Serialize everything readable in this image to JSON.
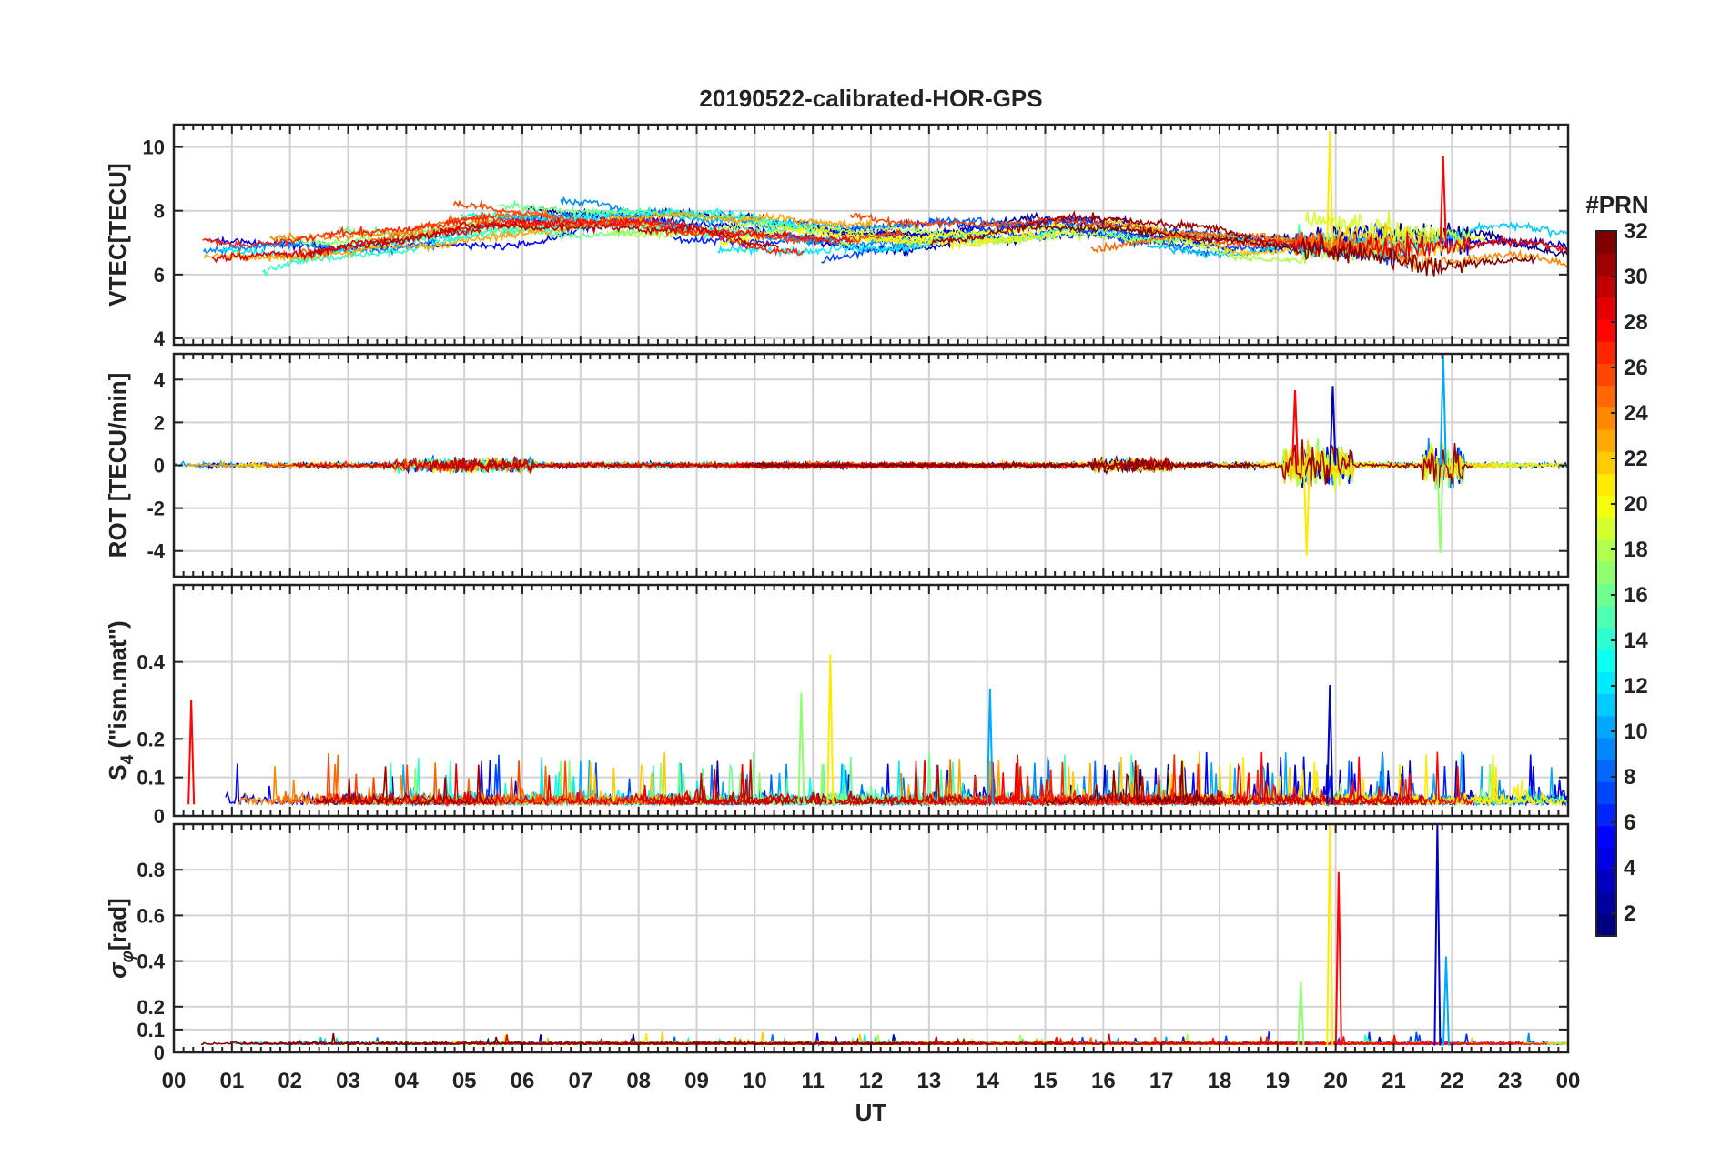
{
  "title": "20190522-calibrated-HOR-GPS",
  "xlabel": "UT",
  "x_ticks": [
    "00",
    "01",
    "02",
    "03",
    "04",
    "05",
    "06",
    "07",
    "08",
    "09",
    "10",
    "11",
    "12",
    "13",
    "14",
    "15",
    "16",
    "17",
    "18",
    "19",
    "20",
    "21",
    "22",
    "23",
    "00"
  ],
  "colorbar": {
    "title": "#PRN",
    "ticks": [
      "2",
      "4",
      "6",
      "8",
      "10",
      "12",
      "14",
      "16",
      "18",
      "20",
      "22",
      "24",
      "26",
      "28",
      "30",
      "32"
    ],
    "range": [
      1,
      32
    ],
    "colormap": "jet"
  },
  "chart_data": [
    {
      "type": "line",
      "panel": "vtec",
      "ylabel": "VTEC[TECU]",
      "ylim": [
        3.8,
        10.7
      ],
      "yticks": [
        "4",
        "6",
        "8",
        "10"
      ],
      "x_range_hours": [
        0,
        24
      ],
      "series_note": "one line per GPS PRN (1-32), colored by PRN",
      "envelope": {
        "x": [
          0,
          2,
          4,
          5,
          6,
          8,
          10,
          11,
          12,
          14,
          15,
          16,
          17,
          18,
          19,
          20,
          21,
          22,
          23,
          24
        ],
        "y": [
          6.7,
          6.9,
          7.6,
          7.9,
          7.7,
          7.8,
          7.3,
          7.1,
          7.2,
          7.6,
          7.7,
          7.4,
          7.1,
          6.9,
          7.0,
          7.1,
          6.6,
          6.8,
          6.7,
          6.2
        ]
      },
      "notable_spikes": [
        {
          "x": 19.9,
          "y": 10.5
        },
        {
          "x": 21.85,
          "y": 9.7
        }
      ]
    },
    {
      "type": "line",
      "panel": "rot",
      "ylabel": "ROT [TECU/min]",
      "ylim": [
        -5.2,
        5.2
      ],
      "yticks": [
        "-4",
        "-2",
        "0",
        "2",
        "4"
      ],
      "x_range_hours": [
        0,
        24
      ],
      "notable_spikes": [
        {
          "x": 19.5,
          "y": -4.2
        },
        {
          "x": 19.3,
          "y": 3.5
        },
        {
          "x": 19.95,
          "y": 3.7
        },
        {
          "x": 21.85,
          "y": 5.2
        },
        {
          "x": 21.8,
          "y": -4.1
        }
      ]
    },
    {
      "type": "line",
      "panel": "s4",
      "ylabel_main": "S",
      "ylabel_sub": "4",
      "ylabel_rest": " (\"ism.mat\")",
      "ylim": [
        0,
        0.6
      ],
      "yticks": [
        "0",
        "0.1",
        "0.2",
        "0.4"
      ],
      "ytick_values": [
        0,
        0.1,
        0.2,
        0.4
      ],
      "x_range_hours": [
        0,
        24
      ],
      "notable_spikes": [
        {
          "x": 11.3,
          "y": 0.42
        },
        {
          "x": 0.3,
          "y": 0.3
        },
        {
          "x": 19.9,
          "y": 0.34
        },
        {
          "x": 14.05,
          "y": 0.33
        },
        {
          "x": 10.8,
          "y": 0.32
        }
      ]
    },
    {
      "type": "line",
      "panel": "sigma_phi",
      "ylabel_main": "σ",
      "ylabel_sub": "φ",
      "ylabel_rest": "[rad]",
      "ylim": [
        0,
        1.0
      ],
      "yticks": [
        "0",
        "0.1",
        "0.2",
        "0.4",
        "0.6",
        "0.8"
      ],
      "ytick_values": [
        0,
        0.1,
        0.2,
        0.4,
        0.6,
        0.8
      ],
      "x_range_hours": [
        0,
        24
      ],
      "notable_spikes": [
        {
          "x": 19.9,
          "y": 1.0
        },
        {
          "x": 20.05,
          "y": 0.79
        },
        {
          "x": 21.75,
          "y": 1.0
        },
        {
          "x": 21.9,
          "y": 0.42
        },
        {
          "x": 19.4,
          "y": 0.31
        }
      ]
    }
  ]
}
